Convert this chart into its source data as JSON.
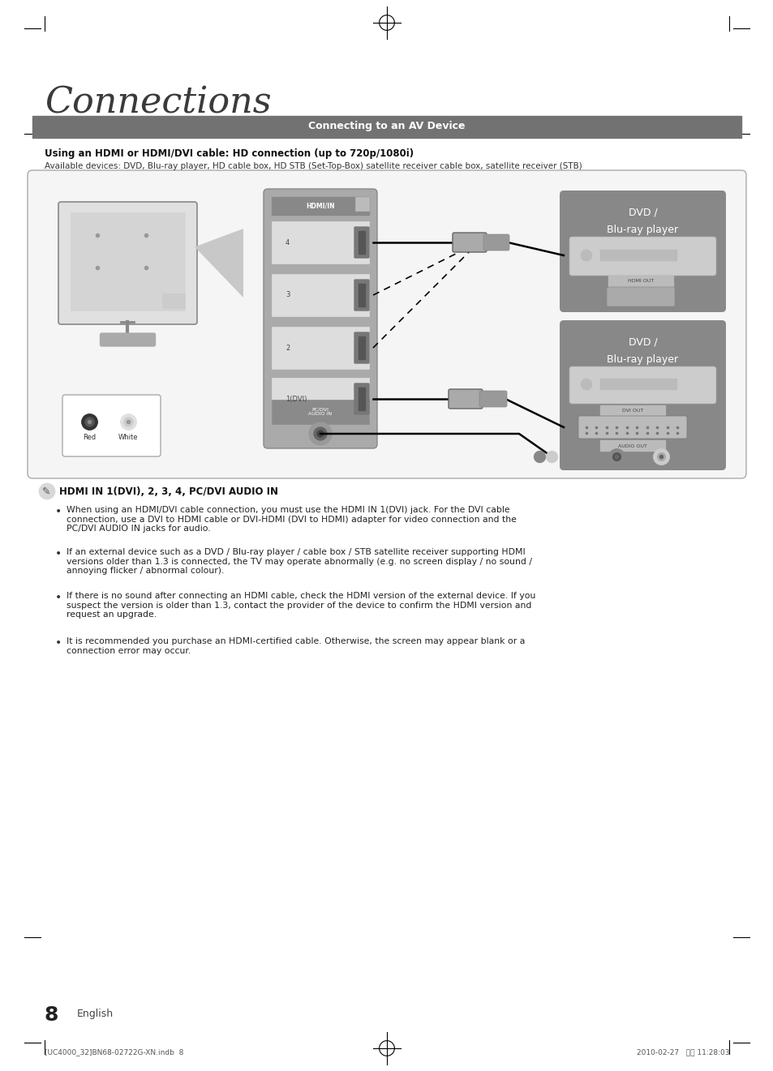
{
  "page_bg": "#ffffff",
  "title": "Connections",
  "section_bar_text": "Connecting to an AV Device",
  "section_bar_color": "#727272",
  "heading1": "Using an HDMI or HDMI/DVI cable: HD connection (up to 720p/1080i)",
  "subheading1": "Available devices: DVD, Blu-ray player, HD cable box, HD STB (Set-Top-Box) satellite receiver cable box, satellite receiver (STB)",
  "note_heading": "HDMI IN 1(DVI), 2, 3, 4, PC/DVI AUDIO IN",
  "bullet1": "When using an HDMI/DVI cable connection, you must use the HDMI IN 1(DVI) jack. For the DVI cable\nconnection, use a DVI to HDMI cable or DVI-HDMI (DVI to HDMI) adapter for video connection and the\nPC/DVI AUDIO IN jacks for audio.",
  "bullet2": "If an external device such as a DVD / Blu-ray player / cable box / STB satellite receiver supporting HDMI\nversions older than 1.3 is connected, the TV may operate abnormally (e.g. no screen display / no sound /\nannoying flicker / abnormal colour).",
  "bullet3": "If there is no sound after connecting an HDMI cable, check the HDMI version of the external device. If you\nsuspect the version is older than 1.3, contact the provider of the device to confirm the HDMI version and\nrequest an upgrade.",
  "bullet4": "It is recommended you purchase an HDMI-certified cable. Otherwise, the screen may appear blank or a\nconnection error may occur.",
  "page_number": "8",
  "page_label": "English",
  "footer_left": "[UC4000_32]BN68-02722G-XN.indb  8",
  "footer_right": "2010-02-27   오전 11:28:03"
}
